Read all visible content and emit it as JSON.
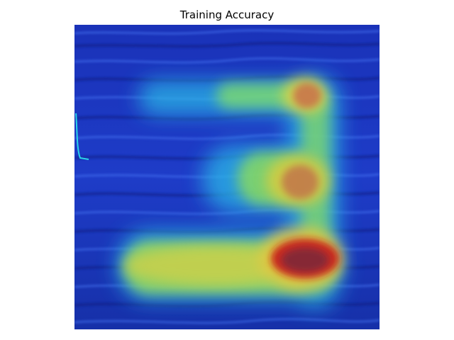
{
  "figure": {
    "title": "Training Accuracy"
  },
  "image": {
    "subject": "water-surface",
    "overlay": "heatmap",
    "colormap": "jet",
    "colors": {
      "water_deep": "#0f1f8a",
      "water_mid": "#1f3fd0",
      "water_light": "#3a6cf0",
      "heat_low": "#26c6e8",
      "heat_mid": "#a4e04a",
      "heat_high": "#f2d23a",
      "heat_peak": "#c81a1a",
      "background": "#ffffff",
      "title_color": "#000000"
    }
  }
}
